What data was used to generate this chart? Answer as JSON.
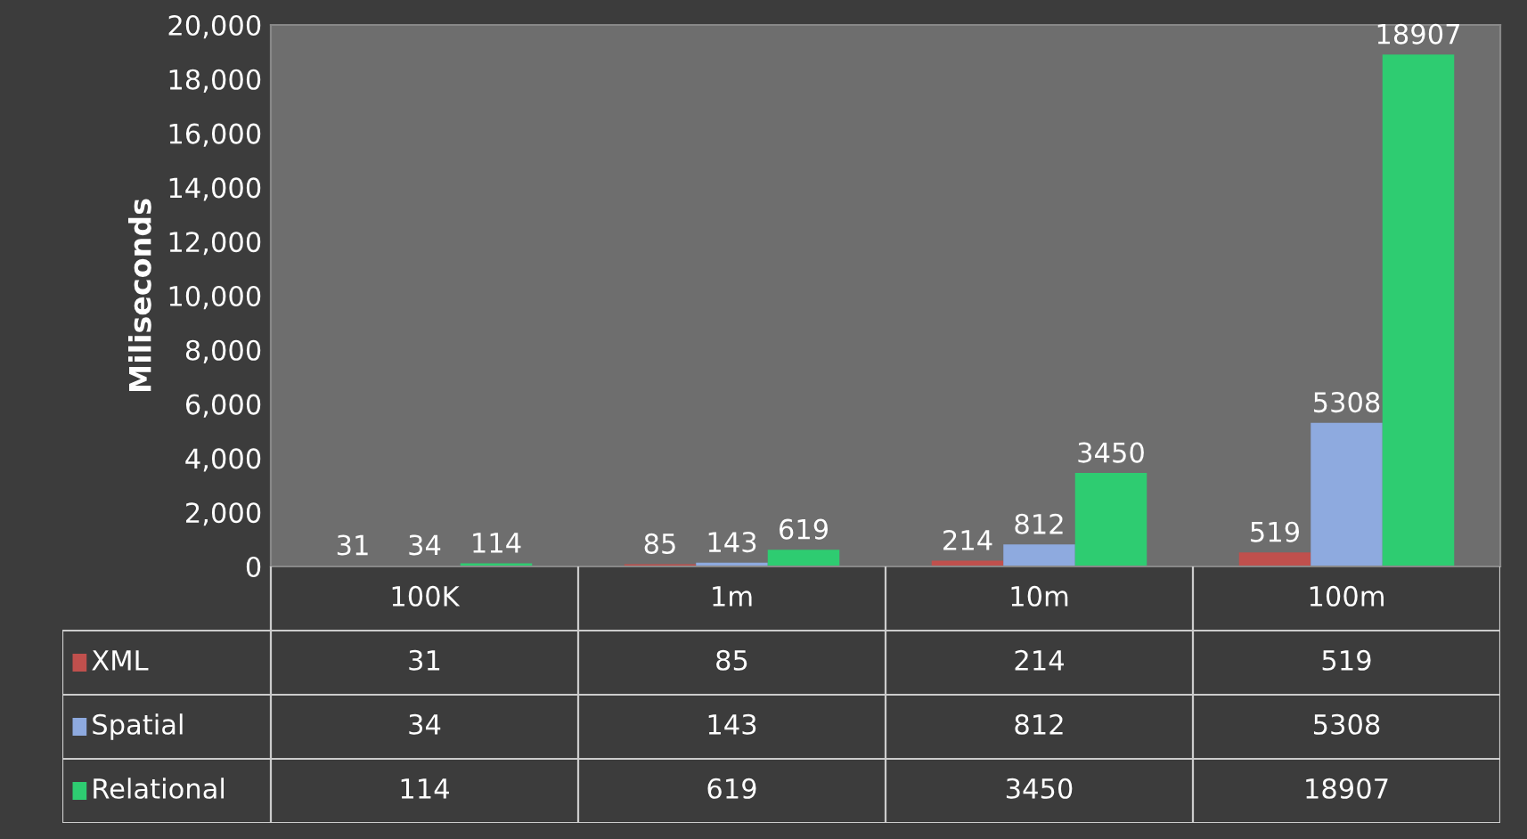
{
  "chart_data": {
    "type": "bar",
    "ylabel": "Miliseconds",
    "categories": [
      "100K",
      "1m",
      "10m",
      "100m"
    ],
    "series": [
      {
        "name": "XML",
        "color": "#c0504d",
        "values": [
          31,
          85,
          214,
          519
        ],
        "value_labels": [
          "31",
          "85",
          "214",
          "519"
        ]
      },
      {
        "name": "Spatial",
        "color": "#8eaadf",
        "values": [
          34,
          143,
          812,
          5308
        ],
        "value_labels": [
          "34",
          "143",
          "812",
          "5308"
        ]
      },
      {
        "name": "Relational",
        "color": "#2ecc71",
        "values": [
          114,
          619,
          3450,
          18907
        ],
        "value_labels": [
          "114",
          "619",
          "3450",
          "18907"
        ]
      }
    ],
    "ylim": [
      0,
      20000
    ],
    "yticks": [
      0,
      {
        "value": 2000,
        "label": "2,000"
      },
      {
        "value": 4000,
        "label": "4,000"
      },
      {
        "value": 6000,
        "label": "6,000"
      },
      {
        "value": 8000,
        "label": "8,000"
      },
      {
        "value": 10000,
        "label": "10,000"
      },
      {
        "value": 12000,
        "label": "12,000"
      },
      {
        "value": 14000,
        "label": "14,000"
      },
      {
        "value": 16000,
        "label": "16,000"
      },
      {
        "value": 18000,
        "label": "18,000"
      },
      {
        "value": 20000,
        "label": "20,000"
      }
    ],
    "legend": "bottom left",
    "annotations": [
      "31",
      "85",
      "214",
      "519",
      "34",
      "143",
      "812",
      "5308",
      "114",
      "619",
      "3450",
      "18907"
    ]
  }
}
